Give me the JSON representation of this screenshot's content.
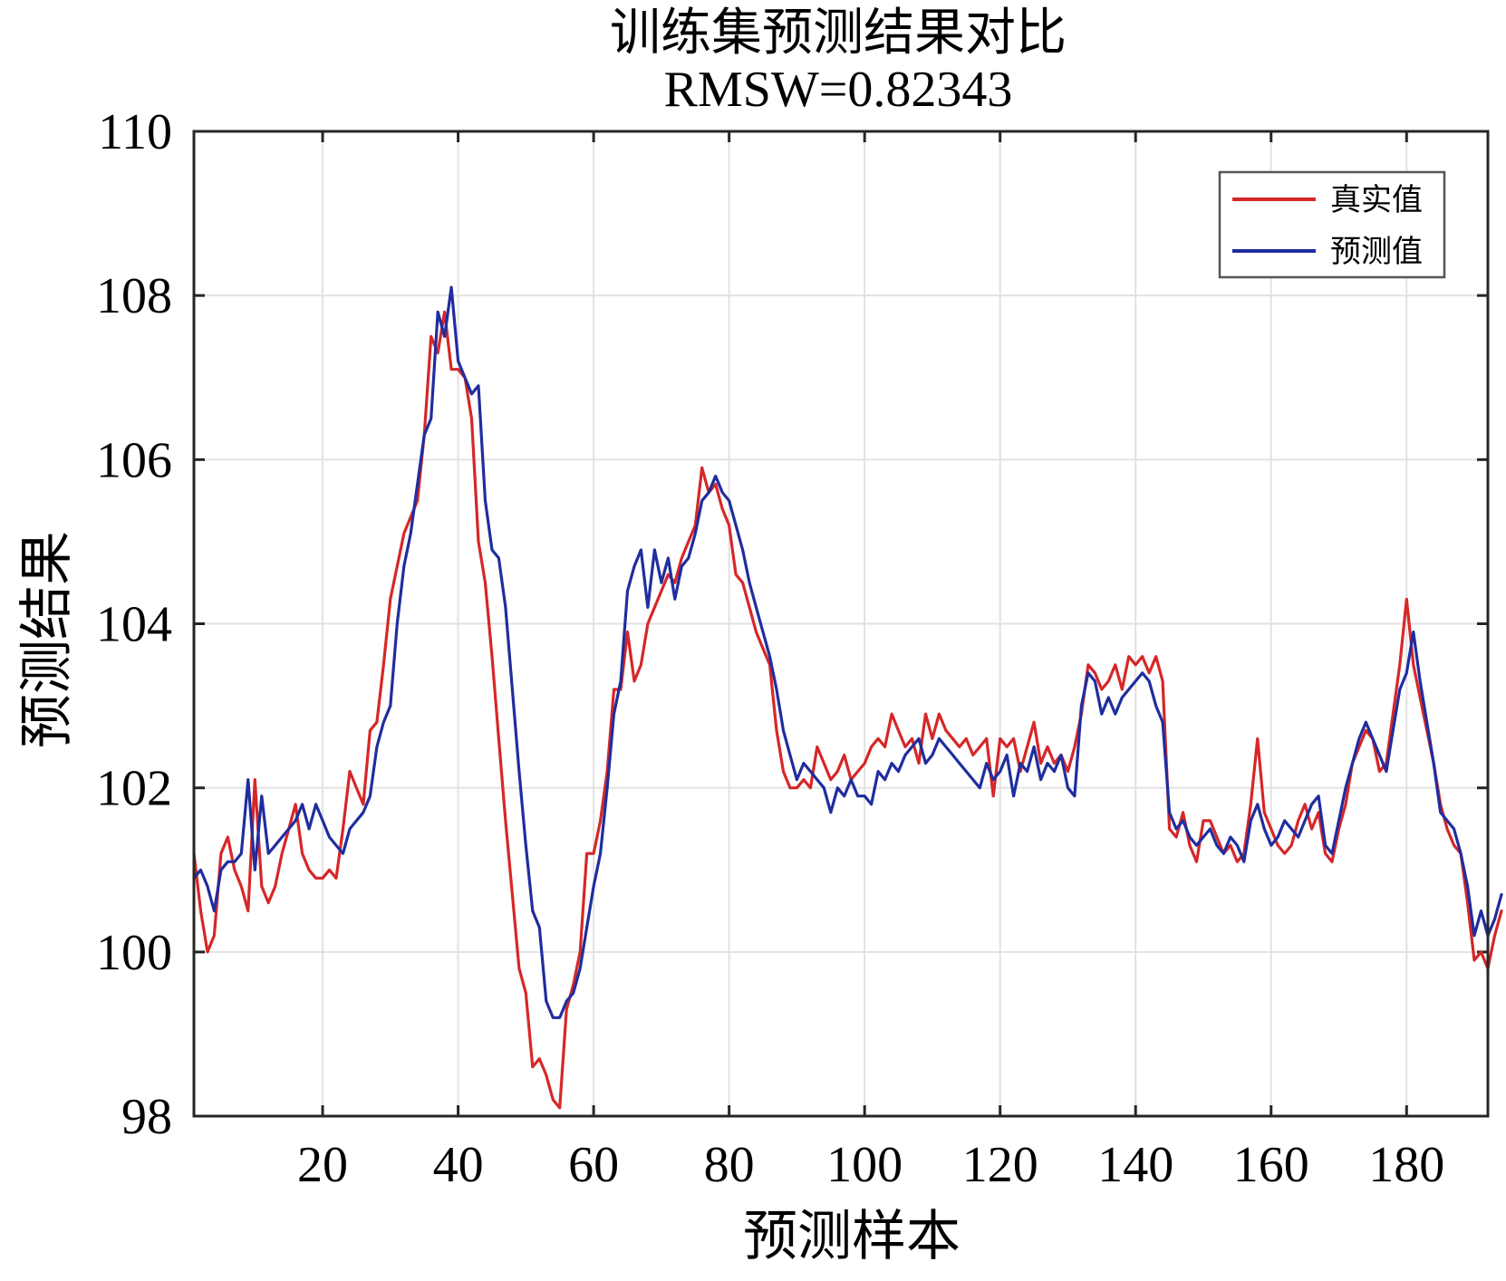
{
  "chart_data": {
    "type": "line",
    "title": "训练集预测结果对比",
    "subtitle": "RMSW=0.82343",
    "xlabel": "预测样本",
    "ylabel": "预测结果",
    "xlim": [
      1,
      192
    ],
    "ylim": [
      98,
      110
    ],
    "xticks": [
      20,
      40,
      60,
      80,
      100,
      120,
      140,
      160,
      180
    ],
    "yticks": [
      98,
      100,
      102,
      104,
      106,
      108,
      110
    ],
    "grid": true,
    "legend_position": "top-right",
    "series": [
      {
        "name": "真实值",
        "color": "#d62728",
        "values": [
          101.2,
          100.5,
          100.0,
          100.2,
          101.2,
          101.4,
          101.0,
          100.8,
          100.5,
          102.1,
          100.8,
          100.6,
          100.8,
          101.2,
          101.5,
          101.8,
          101.2,
          101.0,
          100.9,
          100.9,
          101.0,
          100.9,
          101.5,
          102.2,
          102.0,
          101.8,
          102.7,
          102.8,
          103.5,
          104.3,
          104.7,
          105.1,
          105.3,
          105.5,
          106.3,
          107.5,
          107.3,
          107.8,
          107.1,
          107.1,
          107.0,
          106.5,
          105.0,
          104.5,
          103.6,
          102.6,
          101.6,
          100.7,
          99.8,
          99.5,
          98.6,
          98.7,
          98.5,
          98.2,
          98.1,
          99.3,
          99.6,
          100.0,
          101.2,
          101.2,
          101.6,
          102.2,
          103.2,
          103.2,
          103.9,
          103.3,
          103.5,
          104.0,
          104.2,
          104.4,
          104.6,
          104.5,
          104.8,
          105.0,
          105.2,
          105.9,
          105.6,
          105.7,
          105.4,
          105.2,
          104.6,
          104.5,
          104.2,
          103.9,
          103.7,
          103.5,
          102.7,
          102.2,
          102.0,
          102.0,
          102.1,
          102.0,
          102.5,
          102.3,
          102.1,
          102.2,
          102.4,
          102.1,
          102.2,
          102.3,
          102.5,
          102.6,
          102.5,
          102.9,
          102.7,
          102.5,
          102.6,
          102.3,
          102.9,
          102.6,
          102.9,
          102.7,
          102.6,
          102.5,
          102.6,
          102.4,
          102.5,
          102.6,
          101.9,
          102.6,
          102.5,
          102.6,
          102.2,
          102.5,
          102.8,
          102.3,
          102.5,
          102.3,
          102.4,
          102.2,
          102.5,
          102.9,
          103.5,
          103.4,
          103.2,
          103.3,
          103.5,
          103.2,
          103.6,
          103.5,
          103.6,
          103.4,
          103.6,
          103.3,
          101.5,
          101.4,
          101.7,
          101.3,
          101.1,
          101.6,
          101.6,
          101.4,
          101.2,
          101.3,
          101.1,
          101.2,
          101.8,
          102.6,
          101.7,
          101.5,
          101.3,
          101.2,
          101.3,
          101.6,
          101.8,
          101.5,
          101.7,
          101.2,
          101.1,
          101.5,
          101.8,
          102.3,
          102.5,
          102.7,
          102.6,
          102.2,
          102.3,
          102.9,
          103.5,
          104.3,
          103.5,
          103.1,
          102.7,
          102.3,
          101.8,
          101.5,
          101.3,
          101.2,
          100.6,
          99.9,
          100.0,
          99.8,
          100.2,
          100.5
        ]
      },
      {
        "name": "预测值",
        "color": "#1f2d9e",
        "values": [
          100.9,
          101.0,
          100.8,
          100.5,
          101.0,
          101.1,
          101.1,
          101.2,
          102.1,
          101.0,
          101.9,
          101.2,
          101.3,
          101.4,
          101.5,
          101.6,
          101.8,
          101.5,
          101.8,
          101.6,
          101.4,
          101.3,
          101.2,
          101.5,
          101.6,
          101.7,
          101.9,
          102.5,
          102.8,
          103.0,
          104.0,
          104.7,
          105.1,
          105.7,
          106.3,
          106.5,
          107.8,
          107.5,
          108.1,
          107.2,
          107.0,
          106.8,
          106.9,
          105.5,
          104.9,
          104.8,
          104.2,
          103.2,
          102.2,
          101.3,
          100.5,
          100.3,
          99.4,
          99.2,
          99.2,
          99.4,
          99.5,
          99.8,
          100.3,
          100.8,
          101.2,
          102.0,
          102.9,
          103.3,
          104.4,
          104.7,
          104.9,
          104.2,
          104.9,
          104.5,
          104.8,
          104.3,
          104.7,
          104.8,
          105.1,
          105.5,
          105.6,
          105.8,
          105.6,
          105.5,
          105.2,
          104.9,
          104.5,
          104.2,
          103.9,
          103.6,
          103.2,
          102.7,
          102.4,
          102.1,
          102.3,
          102.2,
          102.1,
          102.0,
          101.7,
          102.0,
          101.9,
          102.1,
          101.9,
          101.9,
          101.8,
          102.2,
          102.1,
          102.3,
          102.2,
          102.4,
          102.5,
          102.6,
          102.3,
          102.4,
          102.6,
          102.5,
          102.4,
          102.3,
          102.2,
          102.1,
          102.0,
          102.3,
          102.1,
          102.2,
          102.4,
          101.9,
          102.3,
          102.2,
          102.5,
          102.1,
          102.3,
          102.2,
          102.4,
          102.0,
          101.9,
          103.0,
          103.4,
          103.3,
          102.9,
          103.1,
          102.9,
          103.1,
          103.2,
          103.3,
          103.4,
          103.3,
          103.0,
          102.8,
          101.7,
          101.5,
          101.6,
          101.4,
          101.3,
          101.4,
          101.5,
          101.3,
          101.2,
          101.4,
          101.3,
          101.1,
          101.6,
          101.8,
          101.5,
          101.3,
          101.4,
          101.6,
          101.5,
          101.4,
          101.6,
          101.8,
          101.9,
          101.3,
          101.2,
          101.6,
          102.0,
          102.3,
          102.6,
          102.8,
          102.6,
          102.4,
          102.2,
          102.7,
          103.2,
          103.4,
          103.9,
          103.3,
          102.8,
          102.3,
          101.7,
          101.6,
          101.5,
          101.2,
          100.8,
          100.2,
          100.5,
          100.2,
          100.4,
          100.7
        ]
      }
    ]
  }
}
